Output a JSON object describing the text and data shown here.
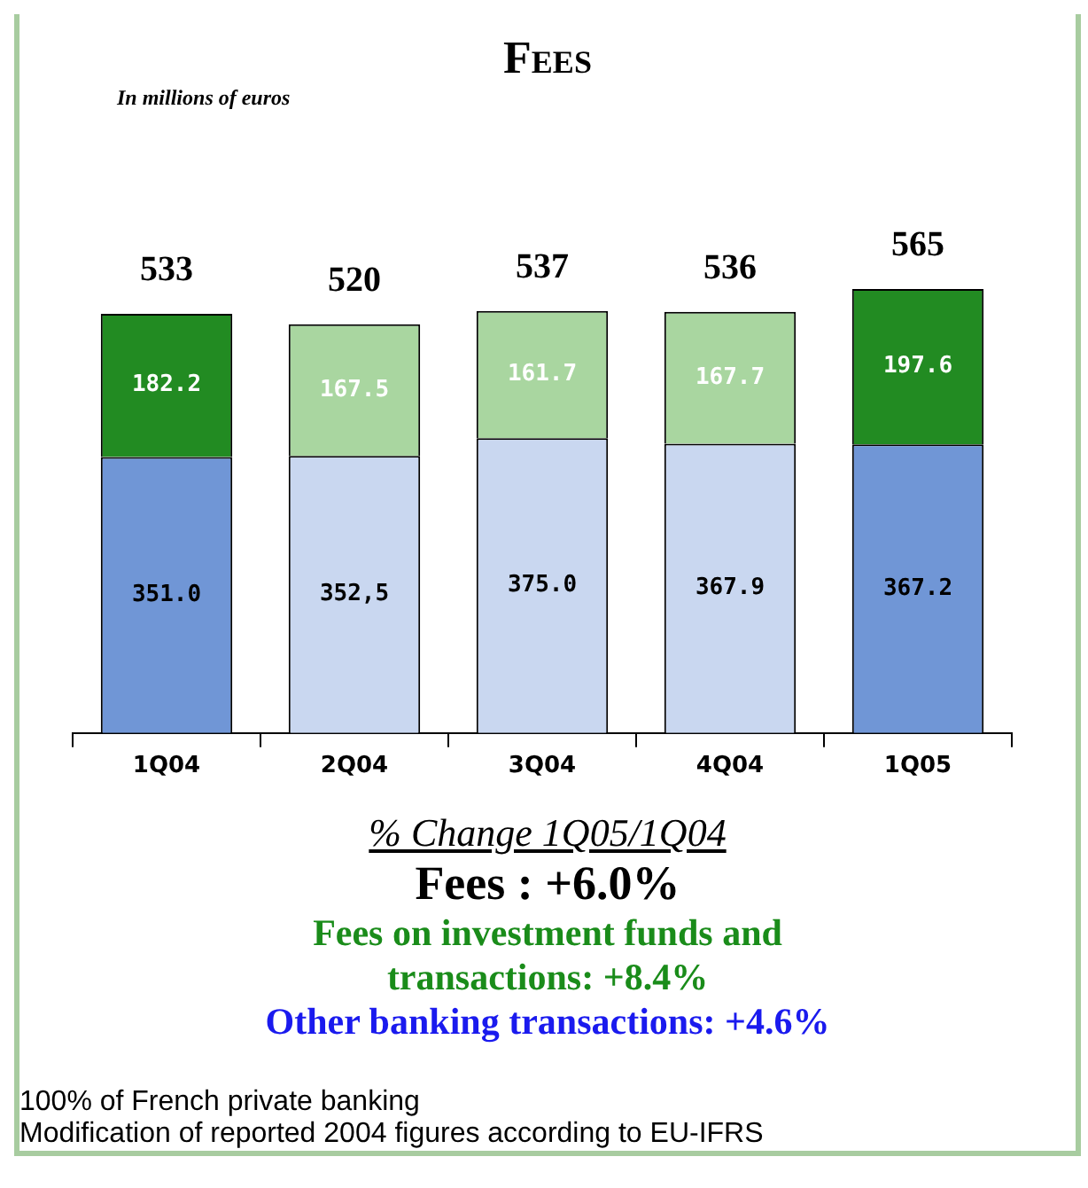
{
  "chart_data": {
    "type": "bar",
    "title": "Fees",
    "subtitle": "In millions of euros",
    "categories": [
      "1Q04",
      "2Q04",
      "3Q04",
      "4Q04",
      "1Q05"
    ],
    "stacked": true,
    "tick_labels": "x",
    "grid": false,
    "legend": false,
    "series": [
      {
        "colors": [
          "#7096d6",
          "#c9d7f0",
          "#c9d7f0",
          "#c9d7f0",
          "#7096d6"
        ],
        "values": [
          351.0,
          352.5,
          375.0,
          367.9,
          367.2
        ],
        "value_labels": [
          "351.0",
          "352,5",
          "375.0",
          "367.9",
          "367.2"
        ]
      },
      {
        "colors": [
          "#228b22",
          "#a9d6a0",
          "#a9d6a0",
          "#a9d6a0",
          "#228b22"
        ],
        "values": [
          182.2,
          167.5,
          161.7,
          167.7,
          197.6
        ],
        "value_labels": [
          "182.2",
          "167.5",
          "161.7",
          "167.7",
          "197.6"
        ]
      }
    ],
    "totals": [
      "533",
      "520",
      "537",
      "536",
      "565"
    ],
    "annotations": [
      "% Change 1Q05/1Q04",
      "Fees : +6.0%",
      "Fees on investment funds and transactions: +8.4%",
      "Other banking transactions: +4.6%",
      "100% of French private banking",
      "Modification of reported 2004 figures according to EU-IFRS"
    ]
  }
}
